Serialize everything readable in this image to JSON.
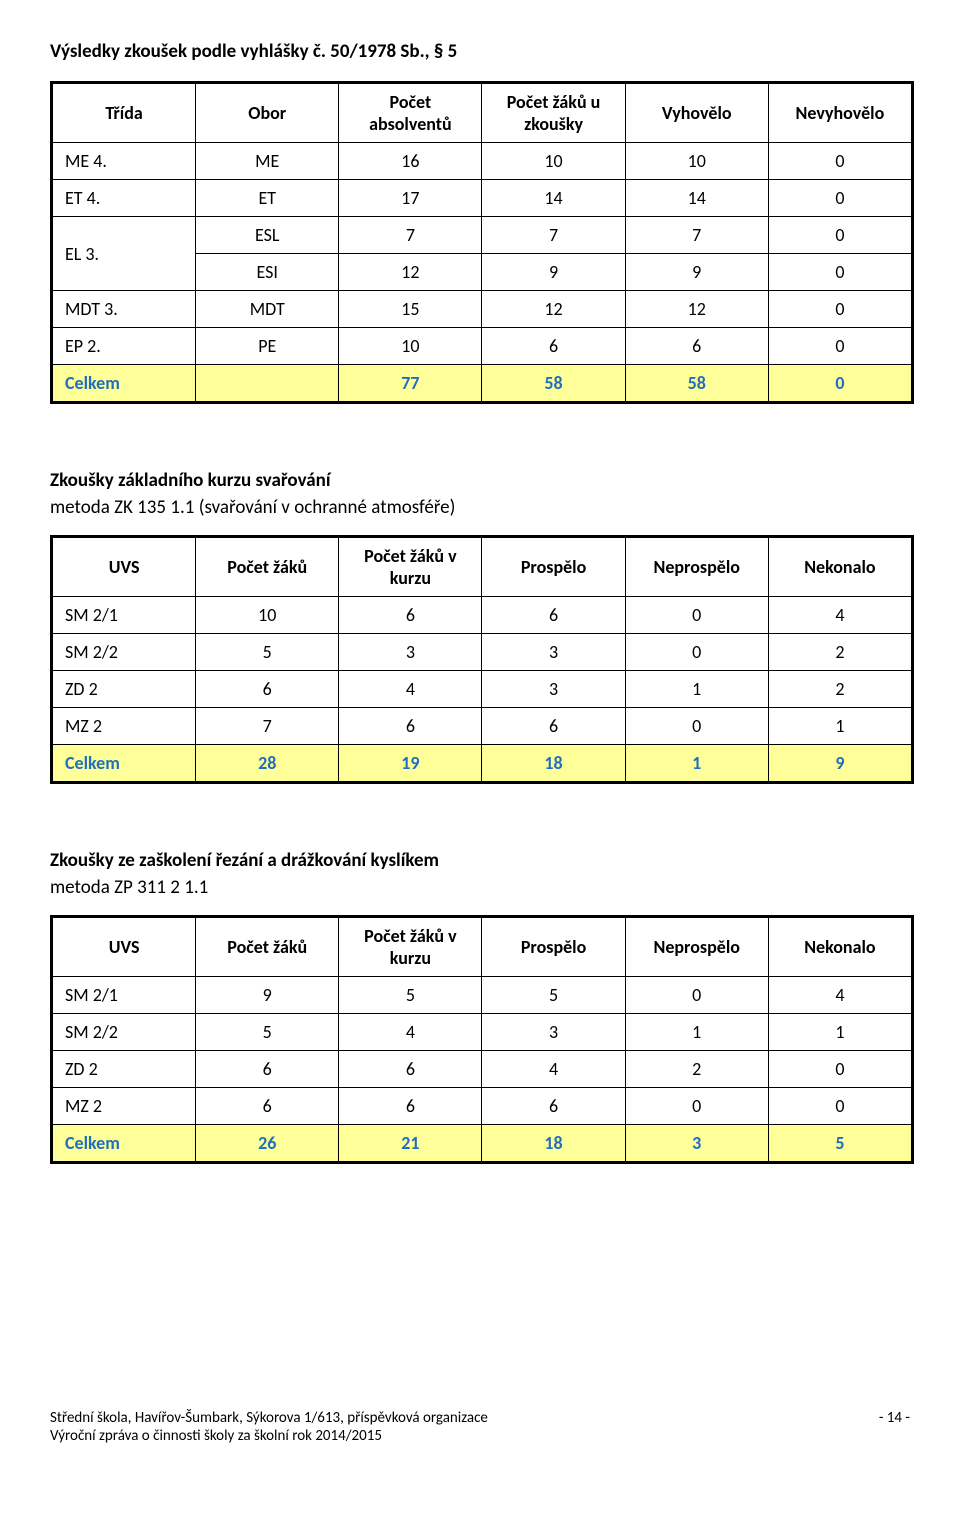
{
  "title": "Výsledky zkoušek podle vyhlášky č. 50/1978 Sb., § 5",
  "table1": {
    "headers": [
      "Třída",
      "Obor",
      "Počet absolventů",
      "Počet žáků u zkoušky",
      "Vyhovělo",
      "Nevyhovělo"
    ],
    "rows": [
      [
        "ME 4.",
        "ME",
        "16",
        "10",
        "10",
        "0"
      ],
      [
        "ET 4.",
        "ET",
        "17",
        "14",
        "14",
        "0"
      ],
      [
        "EL 3.",
        "ESL",
        "7",
        "7",
        "7",
        "0"
      ],
      [
        "",
        "ESI",
        "12",
        "9",
        "9",
        "0"
      ],
      [
        "MDT 3.",
        "MDT",
        "15",
        "12",
        "12",
        "0"
      ],
      [
        "EP 2.",
        "PE",
        "10",
        "6",
        "6",
        "0"
      ]
    ],
    "totals": [
      "Celkem",
      "",
      "77",
      "58",
      "58",
      "0"
    ]
  },
  "section2": {
    "title": "Zkoušky základního kurzu svařování",
    "subtitle": "metoda ZK 135 1.1 (svařování v ochranné atmosféře)",
    "headers": [
      "UVS",
      "Počet žáků",
      "Počet žáků v kurzu",
      "Prospělo",
      "Neprospělo",
      "Nekonalo"
    ],
    "rows": [
      [
        "SM 2/1",
        "10",
        "6",
        "6",
        "0",
        "4"
      ],
      [
        "SM 2/2",
        "5",
        "3",
        "3",
        "0",
        "2"
      ],
      [
        "ZD 2",
        "6",
        "4",
        "3",
        "1",
        "2"
      ],
      [
        "MZ 2",
        "7",
        "6",
        "6",
        "0",
        "1"
      ]
    ],
    "totals": [
      "Celkem",
      "28",
      "19",
      "18",
      "1",
      "9"
    ]
  },
  "section3": {
    "title": "Zkoušky ze zaškolení řezání a drážkování kyslíkem",
    "subtitle": "metoda ZP 311 2 1.1",
    "headers": [
      "UVS",
      "Počet žáků",
      "Počet žáků v kurzu",
      "Prospělo",
      "Neprospělo",
      "Nekonalo"
    ],
    "rows": [
      [
        "SM 2/1",
        "9",
        "5",
        "5",
        "0",
        "4"
      ],
      [
        "SM 2/2",
        "5",
        "4",
        "3",
        "1",
        "1"
      ],
      [
        "ZD 2",
        "6",
        "6",
        "4",
        "2",
        "0"
      ],
      [
        "MZ 2",
        "6",
        "6",
        "6",
        "0",
        "0"
      ]
    ],
    "totals": [
      "Celkem",
      "26",
      "21",
      "18",
      "3",
      "5"
    ]
  },
  "footer": {
    "line1": "Střední škola, Havířov-Šumbark, Sýkorova 1/613, příspěvková organizace",
    "line2": "Výroční zpráva o činnosti školy za školní rok 2014/2015",
    "page": "- 14 -"
  }
}
